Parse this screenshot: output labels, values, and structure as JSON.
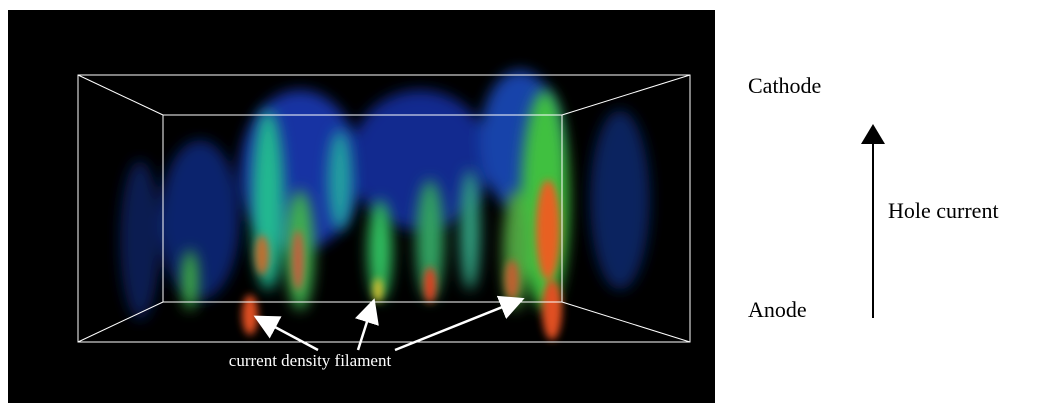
{
  "image": {
    "caption": "current density filament"
  },
  "labels": {
    "top": "Cathode",
    "arrow": "Hole current",
    "bottom": "Anode"
  }
}
